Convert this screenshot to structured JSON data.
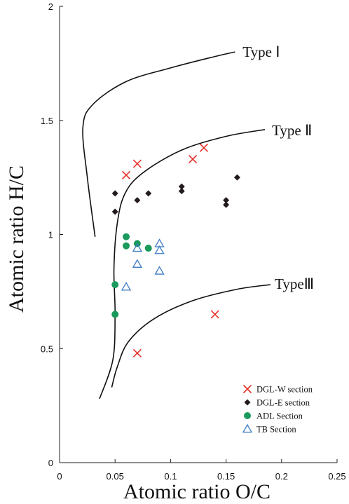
{
  "chart_data": {
    "type": "scatter",
    "xlabel": "Atomic ratio O/C",
    "ylabel": "Atomic ratio H/C",
    "xlim": [
      0,
      0.25
    ],
    "ylim": [
      0,
      2
    ],
    "x_ticks": [
      "0",
      "0.05",
      "0.1",
      "0.15",
      "0.2",
      "0.25"
    ],
    "y_ticks": [
      "0",
      "0.5",
      "1",
      "1.5",
      "2"
    ],
    "grid": false,
    "legend_position": "bottom-right",
    "type_curves": [
      {
        "label": "Type Ⅰ",
        "points": [
          [
            0.032,
            0.99
          ],
          [
            0.025,
            1.25
          ],
          [
            0.021,
            1.47
          ],
          [
            0.03,
            1.57
          ],
          [
            0.06,
            1.67
          ],
          [
            0.1,
            1.73
          ],
          [
            0.14,
            1.78
          ],
          [
            0.158,
            1.8
          ]
        ]
      },
      {
        "label": "Type Ⅱ",
        "points": [
          [
            0.036,
            0.28
          ],
          [
            0.048,
            0.45
          ],
          [
            0.05,
            0.65
          ],
          [
            0.049,
            0.85
          ],
          [
            0.052,
            1.05
          ],
          [
            0.059,
            1.18
          ],
          [
            0.075,
            1.27
          ],
          [
            0.11,
            1.37
          ],
          [
            0.15,
            1.43
          ],
          [
            0.185,
            1.46
          ]
        ]
      },
      {
        "label": "TypeⅢ",
        "points": [
          [
            0.047,
            0.33
          ],
          [
            0.052,
            0.42
          ],
          [
            0.062,
            0.53
          ],
          [
            0.085,
            0.63
          ],
          [
            0.12,
            0.71
          ],
          [
            0.16,
            0.76
          ],
          [
            0.19,
            0.78
          ]
        ]
      }
    ],
    "series": [
      {
        "name": "DGL-W section",
        "marker": "x",
        "color": "#e8322a",
        "x": [
          0.06,
          0.07,
          0.12,
          0.13,
          0.07,
          0.14
        ],
        "y": [
          1.26,
          1.31,
          1.33,
          1.38,
          0.48,
          0.65
        ]
      },
      {
        "name": "DGL-E section",
        "marker": "diamond",
        "color": "#231a1c",
        "x": [
          0.05,
          0.05,
          0.07,
          0.08,
          0.11,
          0.11,
          0.15,
          0.15,
          0.16
        ],
        "y": [
          1.18,
          1.1,
          1.15,
          1.18,
          1.21,
          1.19,
          1.15,
          1.13,
          1.25
        ]
      },
      {
        "name": "ADL Section",
        "marker": "circle",
        "color": "#1a9a5c",
        "x": [
          0.06,
          0.06,
          0.07,
          0.08,
          0.05,
          0.05
        ],
        "y": [
          0.99,
          0.95,
          0.96,
          0.94,
          0.78,
          0.65
        ]
      },
      {
        "name": "TB Section",
        "marker": "triangle",
        "color": "#3d7bc6",
        "x": [
          0.07,
          0.09,
          0.09,
          0.07,
          0.06,
          0.09
        ],
        "y": [
          0.94,
          0.96,
          0.93,
          0.87,
          0.77,
          0.84
        ]
      }
    ]
  }
}
